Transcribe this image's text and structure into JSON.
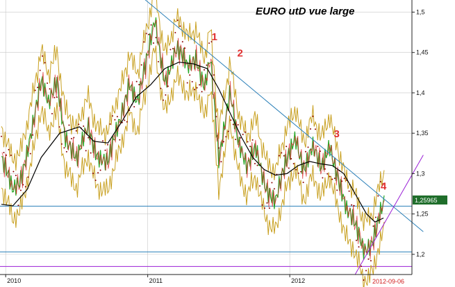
{
  "chart_data": {
    "type": "line",
    "title": "EURO utD vue large",
    "date_label": "2012-09-06",
    "price_label": "1,25965",
    "xlabels": [
      "2010",
      "2011",
      "2012"
    ],
    "yticks": [
      "1,5",
      "1,45",
      "1,4",
      "1,35",
      "1,3",
      "1,25",
      "1,2"
    ],
    "ylim": [
      1.175,
      1.515
    ],
    "xlim": [
      2009.96,
      2012.86
    ],
    "wave_labels": [
      "1",
      "2",
      "3",
      "4"
    ],
    "last_price": 1.25965,
    "horizontal_lines": [
      1.25965,
      1.203,
      1.185
    ],
    "colors": {
      "price": "#27a827",
      "bollinger": "#c8a020",
      "moving_average": "#000000",
      "dots": "#8b0000",
      "trendline": "#2a7fb8",
      "support": "#2a7fb8",
      "purple_line": "#9a1fd6",
      "price_box": "#1f6e2b",
      "grid": "#c8c8c8"
    },
    "price_series": {
      "x": [
        2009.97,
        2010.05,
        2010.1,
        2010.17,
        2010.25,
        2010.3,
        2010.36,
        2010.42,
        2010.5,
        2010.58,
        2010.64,
        2010.72,
        2010.8,
        2010.87,
        2010.93,
        2011.0,
        2011.05,
        2011.12,
        2011.2,
        2011.28,
        2011.34,
        2011.4,
        2011.44,
        2011.5,
        2011.58,
        2011.64,
        2011.7,
        2011.76,
        2011.83,
        2011.9,
        2011.96,
        2012.04,
        2012.1,
        2012.16,
        2012.22,
        2012.28,
        2012.34,
        2012.4,
        2012.46,
        2012.52,
        2012.58,
        2012.63,
        2012.67
      ],
      "y": [
        1.32,
        1.272,
        1.29,
        1.35,
        1.41,
        1.38,
        1.42,
        1.35,
        1.31,
        1.36,
        1.33,
        1.31,
        1.36,
        1.42,
        1.39,
        1.44,
        1.49,
        1.42,
        1.45,
        1.43,
        1.45,
        1.41,
        1.44,
        1.31,
        1.41,
        1.34,
        1.3,
        1.33,
        1.29,
        1.265,
        1.3,
        1.35,
        1.31,
        1.33,
        1.3,
        1.34,
        1.3,
        1.25,
        1.232,
        1.21,
        1.22,
        1.245,
        1.26
      ]
    },
    "moving_average": {
      "x": [
        2009.97,
        2010.05,
        2010.15,
        2010.25,
        2010.38,
        2010.52,
        2010.62,
        2010.72,
        2010.82,
        2010.92,
        2011.02,
        2011.12,
        2011.22,
        2011.32,
        2011.42,
        2011.5,
        2011.58,
        2011.66,
        2011.74,
        2011.82,
        2011.9,
        2011.98,
        2012.06,
        2012.14,
        2012.22,
        2012.3,
        2012.38,
        2012.46,
        2012.54,
        2012.6,
        2012.66
      ],
      "y": [
        1.262,
        1.26,
        1.28,
        1.32,
        1.35,
        1.358,
        1.34,
        1.338,
        1.365,
        1.395,
        1.41,
        1.43,
        1.438,
        1.436,
        1.43,
        1.405,
        1.375,
        1.345,
        1.32,
        1.305,
        1.298,
        1.3,
        1.31,
        1.315,
        1.312,
        1.31,
        1.3,
        1.275,
        1.25,
        1.24,
        1.245
      ]
    },
    "trendline": {
      "x": [
        2010.95,
        2012.94
      ],
      "y": [
        1.52,
        1.228
      ]
    },
    "purple_line": {
      "x": [
        2012.46,
        2012.94
      ],
      "y": [
        1.175,
        1.323
      ]
    },
    "wave_positions": [
      {
        "x": 2011.45,
        "y": 1.465
      },
      {
        "x": 2011.63,
        "y": 1.445
      },
      {
        "x": 2012.31,
        "y": 1.345
      },
      {
        "x": 2012.64,
        "y": 1.28
      }
    ]
  }
}
